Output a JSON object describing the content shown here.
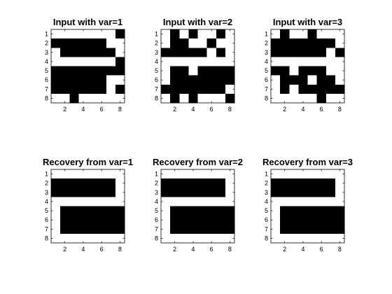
{
  "chart_data": [
    {
      "type": "heatmap",
      "title": "Input with var=1",
      "xlim": [
        0.5,
        8.5
      ],
      "ylim": [
        0.5,
        8.5
      ],
      "x_ticks": [
        "2",
        "4",
        "6",
        "8"
      ],
      "y_ticks": [
        "1",
        "2",
        "3",
        "4",
        "5",
        "6",
        "7",
        "8"
      ],
      "colors": {
        "1": "#000000",
        "0": "#ffffff"
      },
      "values": [
        [
          0,
          0,
          0,
          0,
          0,
          0,
          0,
          1
        ],
        [
          1,
          1,
          1,
          1,
          1,
          1,
          0,
          0
        ],
        [
          0,
          1,
          1,
          1,
          1,
          1,
          1,
          0
        ],
        [
          0,
          0,
          0,
          0,
          0,
          0,
          0,
          1
        ],
        [
          1,
          1,
          1,
          1,
          1,
          1,
          1,
          1
        ],
        [
          1,
          1,
          1,
          1,
          1,
          1,
          0,
          0
        ],
        [
          1,
          1,
          1,
          1,
          1,
          1,
          0,
          1
        ],
        [
          0,
          0,
          1,
          0,
          0,
          0,
          0,
          0
        ]
      ]
    },
    {
      "type": "heatmap",
      "title": "Input with var=2",
      "xlim": [
        0.5,
        8.5
      ],
      "ylim": [
        0.5,
        8.5
      ],
      "x_ticks": [
        "2",
        "4",
        "6",
        "8"
      ],
      "y_ticks": [
        "1",
        "2",
        "3",
        "4",
        "5",
        "6",
        "7",
        "8"
      ],
      "colors": {
        "1": "#000000",
        "0": "#ffffff"
      },
      "values": [
        [
          0,
          1,
          0,
          1,
          0,
          0,
          1,
          0
        ],
        [
          0,
          1,
          1,
          0,
          0,
          1,
          0,
          0
        ],
        [
          1,
          1,
          1,
          1,
          1,
          0,
          1,
          0
        ],
        [
          0,
          0,
          0,
          0,
          0,
          0,
          0,
          0
        ],
        [
          0,
          1,
          1,
          0,
          1,
          1,
          1,
          1
        ],
        [
          0,
          1,
          1,
          1,
          1,
          1,
          1,
          1
        ],
        [
          1,
          1,
          1,
          1,
          1,
          1,
          1,
          0
        ],
        [
          0,
          1,
          0,
          1,
          0,
          0,
          0,
          1
        ]
      ]
    },
    {
      "type": "heatmap",
      "title": "Input with var=3",
      "xlim": [
        0.5,
        8.5
      ],
      "ylim": [
        0.5,
        8.5
      ],
      "x_ticks": [
        "2",
        "4",
        "6",
        "8"
      ],
      "y_ticks": [
        "1",
        "2",
        "3",
        "4",
        "5",
        "6",
        "7",
        "8"
      ],
      "colors": {
        "1": "#000000",
        "0": "#ffffff"
      },
      "values": [
        [
          0,
          1,
          0,
          0,
          1,
          0,
          0,
          0
        ],
        [
          1,
          1,
          1,
          1,
          1,
          1,
          1,
          0
        ],
        [
          1,
          1,
          1,
          1,
          1,
          1,
          0,
          1
        ],
        [
          0,
          0,
          0,
          0,
          0,
          0,
          0,
          0
        ],
        [
          1,
          1,
          0,
          1,
          1,
          1,
          0,
          0
        ],
        [
          0,
          1,
          1,
          1,
          0,
          1,
          1,
          0
        ],
        [
          0,
          1,
          0,
          1,
          1,
          1,
          1,
          1
        ],
        [
          0,
          0,
          0,
          0,
          0,
          1,
          0,
          0
        ]
      ]
    },
    {
      "type": "heatmap",
      "title": "Recovery from var=1",
      "xlim": [
        0.5,
        8.5
      ],
      "ylim": [
        0.5,
        8.5
      ],
      "x_ticks": [
        "2",
        "4",
        "6",
        "8"
      ],
      "y_ticks": [
        "1",
        "2",
        "3",
        "4",
        "5",
        "6",
        "7",
        "8"
      ],
      "colors": {
        "1": "#000000",
        "0": "#ffffff"
      },
      "values": [
        [
          0,
          0,
          0,
          0,
          0,
          0,
          0,
          0
        ],
        [
          1,
          1,
          1,
          1,
          1,
          1,
          1,
          0
        ],
        [
          1,
          1,
          1,
          1,
          1,
          1,
          1,
          0
        ],
        [
          0,
          0,
          0,
          0,
          0,
          0,
          0,
          0
        ],
        [
          0,
          1,
          1,
          1,
          1,
          1,
          1,
          1
        ],
        [
          0,
          1,
          1,
          1,
          1,
          1,
          1,
          1
        ],
        [
          0,
          1,
          1,
          1,
          1,
          1,
          1,
          1
        ],
        [
          0,
          0,
          0,
          0,
          0,
          0,
          0,
          0
        ]
      ]
    },
    {
      "type": "heatmap",
      "title": "Recovery from var=2",
      "xlim": [
        0.5,
        8.5
      ],
      "ylim": [
        0.5,
        8.5
      ],
      "x_ticks": [
        "2",
        "4",
        "6",
        "8"
      ],
      "y_ticks": [
        "1",
        "2",
        "3",
        "4",
        "5",
        "6",
        "7",
        "8"
      ],
      "colors": {
        "1": "#000000",
        "0": "#ffffff"
      },
      "values": [
        [
          0,
          0,
          0,
          0,
          0,
          0,
          0,
          0
        ],
        [
          1,
          1,
          1,
          1,
          1,
          1,
          1,
          0
        ],
        [
          1,
          1,
          1,
          1,
          1,
          1,
          1,
          0
        ],
        [
          0,
          0,
          0,
          0,
          0,
          0,
          0,
          0
        ],
        [
          0,
          1,
          1,
          1,
          1,
          1,
          1,
          1
        ],
        [
          0,
          1,
          1,
          1,
          1,
          1,
          1,
          1
        ],
        [
          0,
          1,
          1,
          1,
          1,
          1,
          1,
          1
        ],
        [
          0,
          0,
          0,
          0,
          0,
          0,
          0,
          0
        ]
      ]
    },
    {
      "type": "heatmap",
      "title": "Recovery from var=3",
      "xlim": [
        0.5,
        8.5
      ],
      "ylim": [
        0.5,
        8.5
      ],
      "x_ticks": [
        "2",
        "4",
        "6",
        "8"
      ],
      "y_ticks": [
        "1",
        "2",
        "3",
        "4",
        "5",
        "6",
        "7",
        "8"
      ],
      "colors": {
        "1": "#000000",
        "0": "#ffffff"
      },
      "values": [
        [
          0,
          0,
          0,
          0,
          0,
          0,
          0,
          0
        ],
        [
          1,
          1,
          1,
          1,
          1,
          1,
          1,
          0
        ],
        [
          1,
          1,
          1,
          1,
          1,
          1,
          1,
          0
        ],
        [
          0,
          0,
          0,
          0,
          0,
          0,
          0,
          0
        ],
        [
          0,
          1,
          1,
          1,
          1,
          1,
          1,
          1
        ],
        [
          0,
          1,
          1,
          1,
          1,
          1,
          1,
          1
        ],
        [
          0,
          1,
          1,
          1,
          1,
          1,
          1,
          1
        ],
        [
          0,
          0,
          0,
          0,
          0,
          0,
          0,
          0
        ]
      ]
    }
  ]
}
